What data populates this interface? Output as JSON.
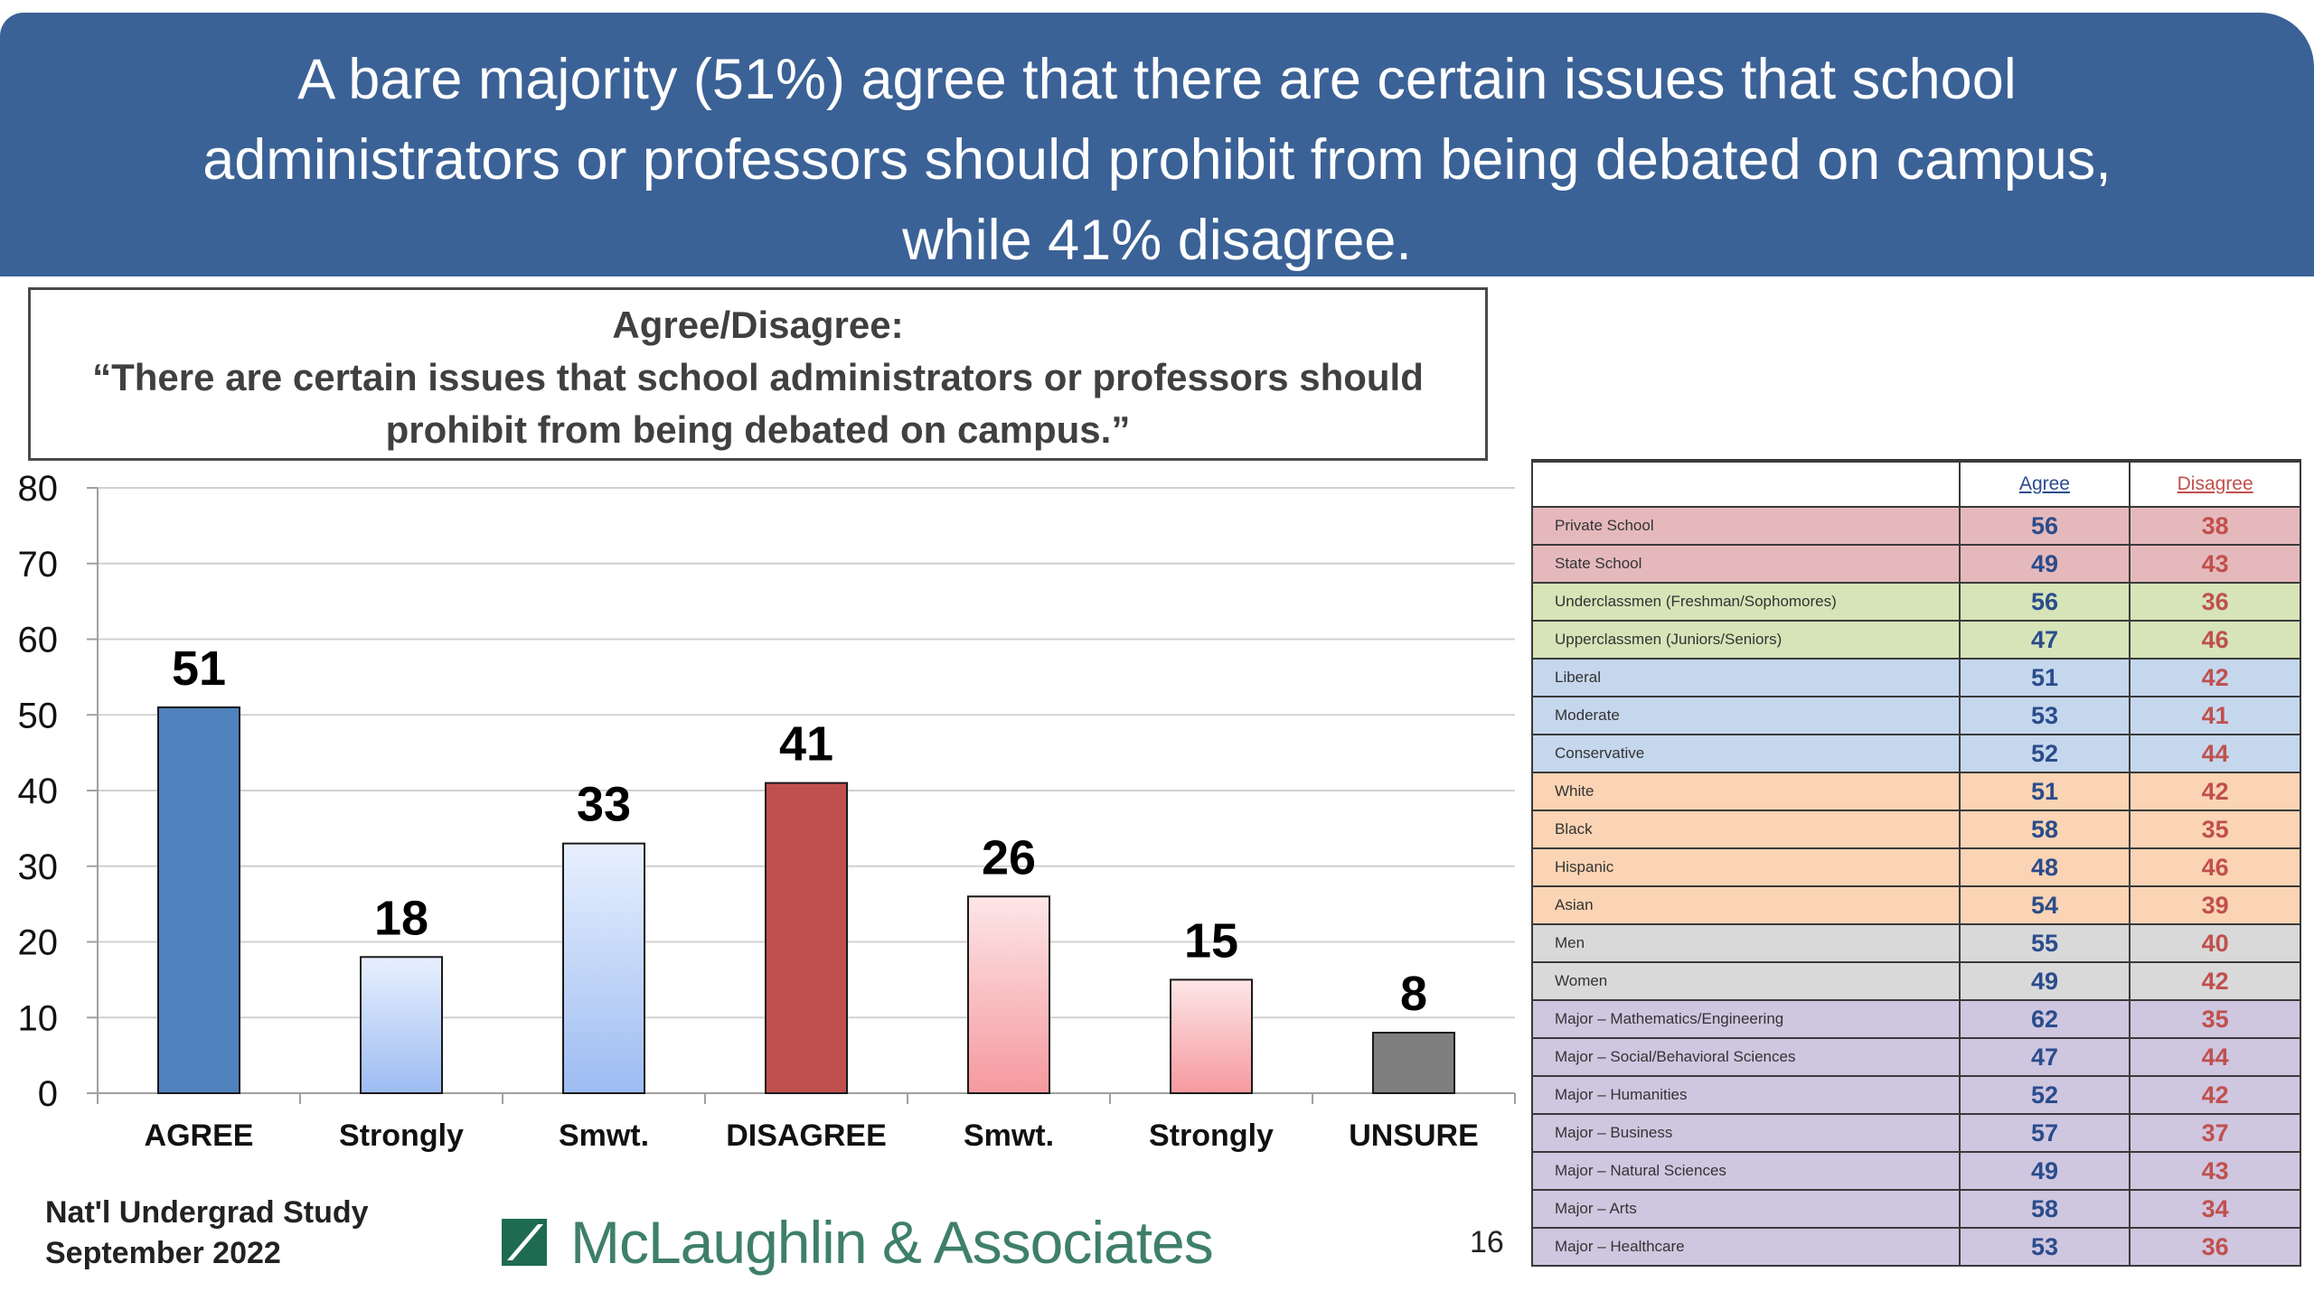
{
  "headline": {
    "line1": "A bare majority (51%) agree that there are certain issues that school",
    "line2": "administrators or professors should prohibit from being debated on campus,",
    "line3": "while 41% disagree."
  },
  "question": {
    "line1": "Agree/Disagree:",
    "line2": "“There are certain issues that school administrators or professors should",
    "line3": "prohibit from being debated on campus.”"
  },
  "chart_data": {
    "type": "bar",
    "categories": [
      "AGREE",
      "Strongly",
      "Smwt.",
      "DISAGREE",
      "Smwt.",
      "Strongly",
      "UNSURE"
    ],
    "values": [
      51,
      18,
      33,
      41,
      26,
      15,
      8
    ],
    "ylim": [
      0,
      80
    ],
    "yticks": [
      0,
      10,
      20,
      30,
      40,
      50,
      60,
      70,
      80
    ],
    "grid": true,
    "colors": [
      "#4f81bd",
      "#b4cdf5",
      "#b4cdf5",
      "#c0504d",
      "#f7b4b8",
      "#f7b4b8",
      "#7f7f7f"
    ]
  },
  "footer": {
    "study": "Nat'l Undergrad Study",
    "date": "September 2022",
    "logo": "McLaughlin & Associates",
    "page": "16"
  },
  "crosstab": {
    "headers": {
      "agree": "Agree",
      "disagree": "Disagree"
    },
    "rows": [
      {
        "label": "Private School",
        "agree": "56",
        "disagree": "38",
        "color": "#e5b9bc"
      },
      {
        "label": "State School",
        "agree": "49",
        "disagree": "43",
        "color": "#e5b9bc"
      },
      {
        "label": "Underclassmen (Freshman/Sophomores)",
        "agree": "56",
        "disagree": "36",
        "color": "#d6e4b8"
      },
      {
        "label": "Upperclassmen (Juniors/Seniors)",
        "agree": "47",
        "disagree": "46",
        "color": "#d6e4b8"
      },
      {
        "label": "Liberal",
        "agree": "51",
        "disagree": "42",
        "color": "#c5d7ed"
      },
      {
        "label": "Moderate",
        "agree": "53",
        "disagree": "41",
        "color": "#c5d7ed"
      },
      {
        "label": "Conservative",
        "agree": "52",
        "disagree": "44",
        "color": "#c5d7ed"
      },
      {
        "label": "White",
        "agree": "51",
        "disagree": "42",
        "color": "#fad4b4"
      },
      {
        "label": "Black",
        "agree": "58",
        "disagree": "35",
        "color": "#fad4b4"
      },
      {
        "label": "Hispanic",
        "agree": "48",
        "disagree": "46",
        "color": "#fad4b4"
      },
      {
        "label": "Asian",
        "agree": "54",
        "disagree": "39",
        "color": "#fad4b4"
      },
      {
        "label": "Men",
        "agree": "55",
        "disagree": "40",
        "color": "#d9d9d9"
      },
      {
        "label": "Women",
        "agree": "49",
        "disagree": "42",
        "color": "#d9d9d9"
      },
      {
        "label": "Major – Mathematics/Engineering",
        "agree": "62",
        "disagree": "35",
        "color": "#cfc6e0"
      },
      {
        "label": "Major – Social/Behavioral Sciences",
        "agree": "47",
        "disagree": "44",
        "color": "#cfc6e0"
      },
      {
        "label": "Major – Humanities",
        "agree": "52",
        "disagree": "42",
        "color": "#cfc6e0"
      },
      {
        "label": "Major – Business",
        "agree": "57",
        "disagree": "37",
        "color": "#cfc6e0"
      },
      {
        "label": "Major – Natural Sciences",
        "agree": "49",
        "disagree": "43",
        "color": "#cfc6e0"
      },
      {
        "label": "Major – Arts",
        "agree": "58",
        "disagree": "34",
        "color": "#cfc6e0"
      },
      {
        "label": "Major – Healthcare",
        "agree": "53",
        "disagree": "36",
        "color": "#cfc6e0"
      }
    ]
  }
}
